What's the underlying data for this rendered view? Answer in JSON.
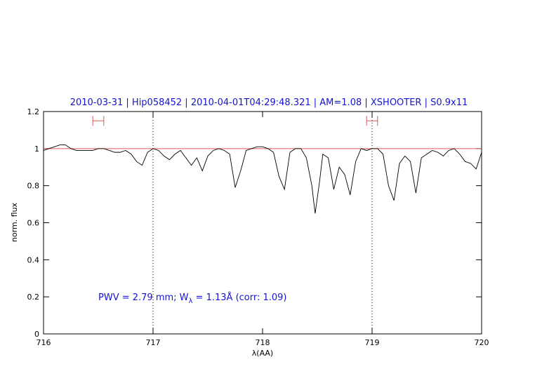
{
  "chart_data": {
    "type": "line",
    "title": "2010-03-31 | Hip058452 | 2010-04-01T04:29:48.321 | AM=1.08 | XSHOOTER | S0.9x11",
    "xlabel": "λ(AA)",
    "ylabel": "norm. flux",
    "annotation": {
      "text": "PWV = 2.79 mm; W",
      "subscript": "λ",
      "rest": " = 1.13Å (corr: 1.09)"
    },
    "xlim": [
      716,
      720
    ],
    "xticks": [
      716,
      717,
      718,
      719,
      720
    ],
    "ylim": [
      0,
      1.2
    ],
    "yticks": [
      0,
      0.2,
      0.4,
      0.6,
      0.8,
      1,
      1.2
    ],
    "continuum": 1,
    "continuum_color": "#e05a5a",
    "dotted_x": [
      717,
      719
    ],
    "intervals": {
      "y": 1.15,
      "color": "#e05a5a",
      "ranges": [
        [
          716.45,
          716.55
        ],
        [
          718.95,
          719.05
        ]
      ]
    },
    "series": [
      {
        "color": "#000000",
        "x": [
          716.0,
          716.05,
          716.1,
          716.15,
          716.2,
          716.25,
          716.3,
          716.35,
          716.4,
          716.45,
          716.5,
          716.55,
          716.6,
          716.65,
          716.7,
          716.75,
          716.8,
          716.85,
          716.9,
          716.95,
          717.0,
          717.05,
          717.1,
          717.15,
          717.2,
          717.25,
          717.3,
          717.35,
          717.4,
          717.45,
          717.5,
          717.55,
          717.6,
          717.65,
          717.7,
          717.75,
          717.8,
          717.85,
          717.9,
          717.95,
          718.0,
          718.05,
          718.1,
          718.15,
          718.2,
          718.25,
          718.3,
          718.35,
          718.4,
          718.45,
          718.48,
          718.52,
          718.55,
          718.6,
          718.65,
          718.7,
          718.75,
          718.8,
          718.85,
          718.9,
          718.95,
          719.0,
          719.05,
          719.1,
          719.15,
          719.2,
          719.25,
          719.3,
          719.35,
          719.4,
          719.45,
          719.5,
          719.55,
          719.6,
          719.65,
          719.7,
          719.75,
          719.8,
          719.85,
          719.9,
          719.95,
          720.0
        ],
        "values": [
          0.99,
          1.0,
          1.01,
          1.02,
          1.02,
          1.0,
          0.99,
          0.99,
          0.99,
          0.99,
          1.0,
          1.0,
          0.99,
          0.98,
          0.98,
          0.99,
          0.97,
          0.93,
          0.91,
          0.98,
          1.0,
          0.99,
          0.96,
          0.94,
          0.97,
          0.99,
          0.95,
          0.91,
          0.95,
          0.88,
          0.96,
          0.99,
          1.0,
          0.99,
          0.97,
          0.79,
          0.88,
          0.99,
          1.0,
          1.01,
          1.01,
          1.0,
          0.98,
          0.85,
          0.78,
          0.98,
          1.0,
          1.0,
          0.95,
          0.8,
          0.65,
          0.82,
          0.97,
          0.95,
          0.78,
          0.9,
          0.86,
          0.75,
          0.93,
          1.0,
          0.99,
          1.0,
          1.0,
          0.97,
          0.8,
          0.72,
          0.92,
          0.96,
          0.93,
          0.76,
          0.95,
          0.97,
          0.99,
          0.98,
          0.96,
          0.99,
          1.0,
          0.97,
          0.93,
          0.92,
          0.89,
          0.98
        ]
      }
    ]
  }
}
